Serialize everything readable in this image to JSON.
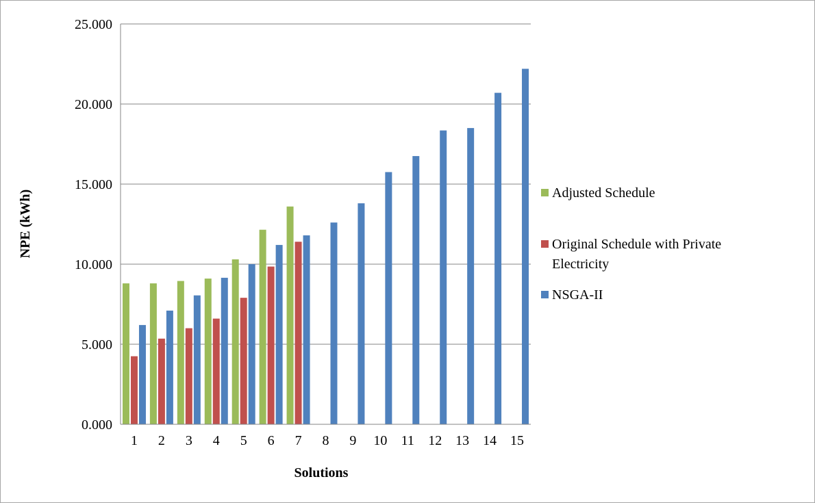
{
  "chart_data": {
    "type": "bar",
    "xlabel": "Solutions",
    "ylabel": "NPE (kWh)",
    "ylim": [
      0,
      25
    ],
    "y_ticks": [
      "0.000",
      "5.000",
      "10.000",
      "15.000",
      "20.000",
      "25.000"
    ],
    "y_tick_values": [
      0,
      5,
      10,
      15,
      20,
      25
    ],
    "categories": [
      "1",
      "2",
      "3",
      "4",
      "5",
      "6",
      "7",
      "8",
      "9",
      "10",
      "11",
      "12",
      "13",
      "14",
      "15"
    ],
    "grid": true,
    "legend_position": "right",
    "series": [
      {
        "name": "Adjusted Schedule",
        "color": "#9bbb59",
        "values": [
          8.8,
          8.8,
          8.95,
          9.1,
          10.3,
          12.15,
          13.6,
          null,
          null,
          null,
          null,
          null,
          null,
          null,
          null
        ]
      },
      {
        "name": "Original Schedule with Private Electricity",
        "color": "#c0504d",
        "values": [
          4.25,
          5.35,
          6.0,
          6.6,
          7.9,
          9.85,
          11.4,
          null,
          null,
          null,
          null,
          null,
          null,
          null,
          null
        ]
      },
      {
        "name": "NSGA-II",
        "color": "#4f81bd",
        "values": [
          6.2,
          7.1,
          8.05,
          9.15,
          10.0,
          11.2,
          11.8,
          12.6,
          13.8,
          15.75,
          16.75,
          18.35,
          18.5,
          20.7,
          22.2
        ]
      }
    ],
    "legend": {
      "adjusted": "Adjusted Schedule",
      "original_line1": "Original Schedule with Private",
      "original_line2": "Electricity",
      "nsga": "NSGA-II"
    }
  }
}
